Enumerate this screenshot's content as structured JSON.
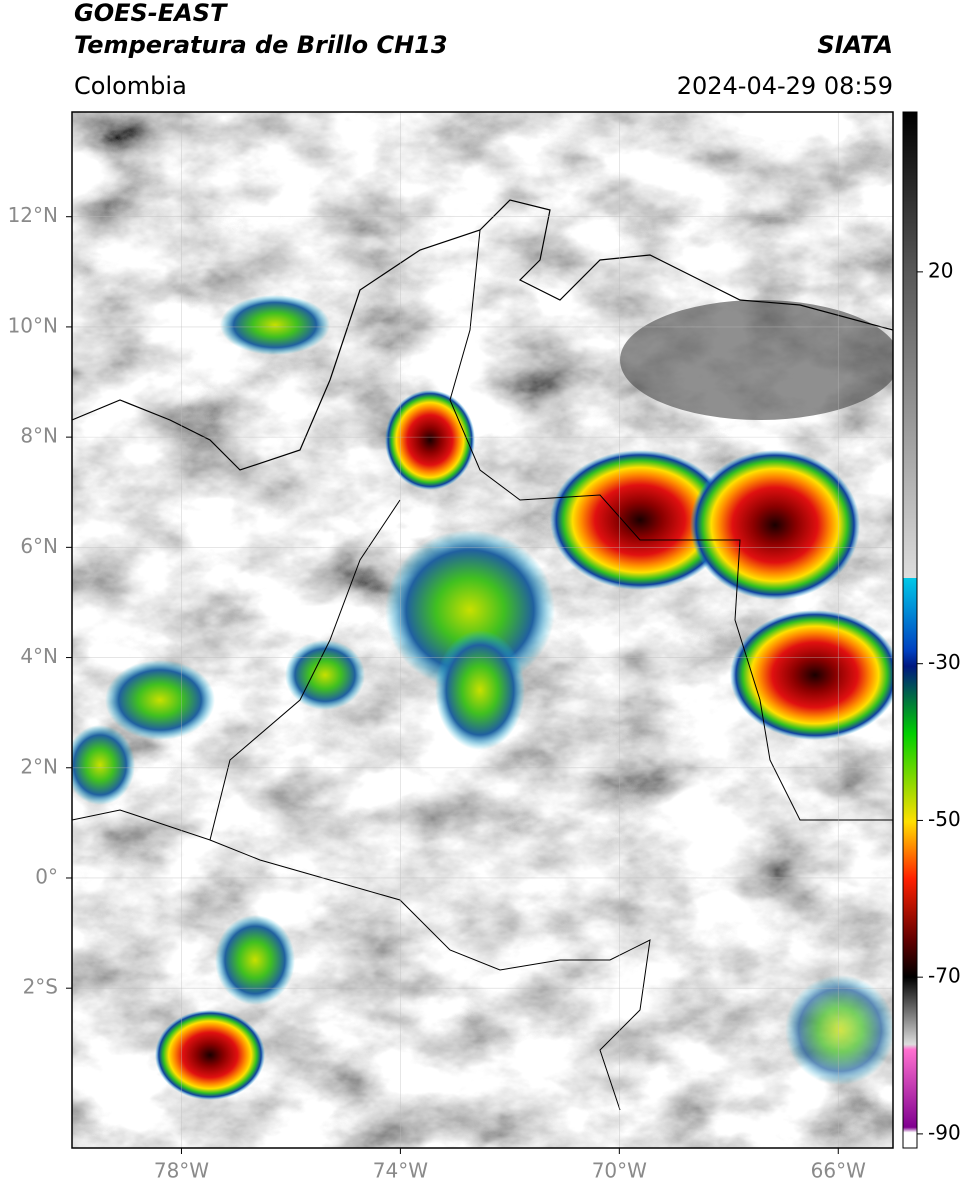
{
  "header": {
    "satellite": "GOES-EAST",
    "product": "Temperatura de Brillo CH13",
    "organization": "SIATA",
    "region": "Colombia",
    "datetime": "2024-04-29 08:59"
  },
  "map": {
    "xlim": [
      -80,
      -65
    ],
    "ylim": [
      -4.9,
      13.9
    ],
    "xticks": [
      {
        "value": -78,
        "label": "78°W"
      },
      {
        "value": -74,
        "label": "74°W"
      },
      {
        "value": -70,
        "label": "70°W"
      },
      {
        "value": -66,
        "label": "66°W"
      }
    ],
    "yticks": [
      {
        "value": 12,
        "label": "12°N"
      },
      {
        "value": 10,
        "label": "10°N"
      },
      {
        "value": 8,
        "label": "8°N"
      },
      {
        "value": 6,
        "label": "6°N"
      },
      {
        "value": 4,
        "label": "4°N"
      },
      {
        "value": 2,
        "label": "2°N"
      },
      {
        "value": 0,
        "label": "0°"
      },
      {
        "value": -2,
        "label": "2°S"
      }
    ],
    "grid": true
  },
  "colorbar": {
    "lim": [
      -91.8,
      40.4
    ],
    "ticks": [
      20,
      -30,
      -50,
      -70,
      -90
    ]
  }
}
